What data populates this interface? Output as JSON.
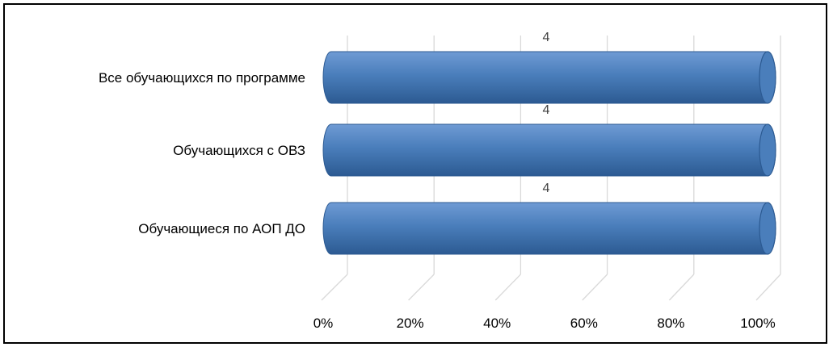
{
  "chart_data": {
    "type": "bar",
    "orientation": "horizontal",
    "style": "3d-cylinder",
    "categories": [
      "Все обучающихся по программе",
      "Обучающихся с ОВЗ",
      "Обучающиеся по АОП ДО"
    ],
    "values": [
      1.0,
      1.0,
      1.0
    ],
    "data_labels": [
      "4",
      "4",
      "4"
    ],
    "xlim": [
      0,
      1
    ],
    "x_tick_labels": [
      "0%",
      "20%",
      "40%",
      "60%",
      "80%",
      "100%"
    ],
    "grid": true,
    "legend": "none",
    "colors": {
      "bar": "#4a7ebb",
      "bar_dark": "#2c5a92",
      "bar_light": "#6f9bd4",
      "grid": "#d9d9d9",
      "label": "#404040"
    }
  }
}
